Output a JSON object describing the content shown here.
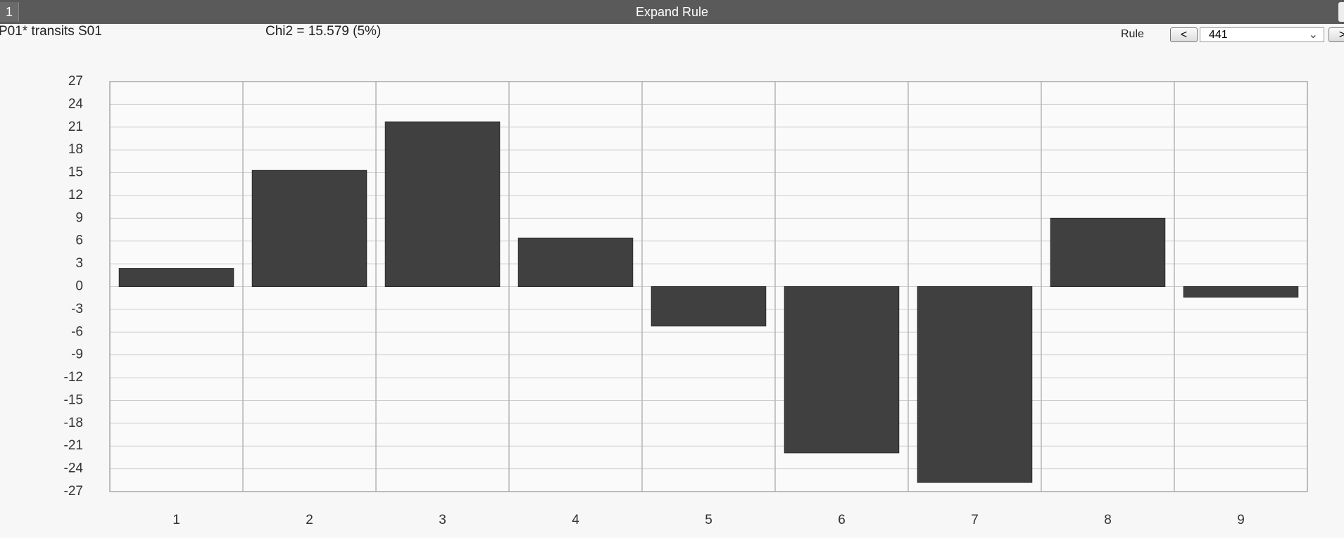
{
  "window": {
    "tab": "1",
    "title": "Expand Rule"
  },
  "header": {
    "subject": "P01* transits S01",
    "statistic": "Chi2 = 15.579 (5%)"
  },
  "controls": {
    "rule_label": "Rule",
    "prev": "<",
    "rule_value": "441",
    "next": ">"
  },
  "chart_data": {
    "type": "bar",
    "categories": [
      "1",
      "2",
      "3",
      "4",
      "5",
      "6",
      "7",
      "8",
      "9"
    ],
    "values": [
      2.4,
      15.3,
      21.7,
      6.4,
      -5.2,
      -21.9,
      -25.8,
      9.0,
      -1.4
    ],
    "color": "#404040",
    "ylim": [
      -27,
      27
    ],
    "yticks": [
      27,
      24,
      21,
      18,
      15,
      12,
      9,
      6,
      3,
      0,
      -3,
      -6,
      -9,
      -12,
      -15,
      -18,
      -21,
      -24,
      -27
    ],
    "grid": true
  }
}
